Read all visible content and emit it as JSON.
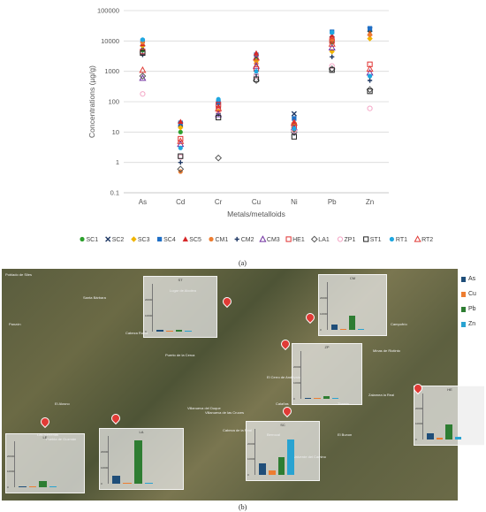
{
  "panel_labels": {
    "a": "(a)",
    "b": "(b)"
  },
  "chart_data": [
    {
      "type": "scatter",
      "xlabel": "Metals/metalloids",
      "ylabel": "Concentrations (µg/g)",
      "yscale": "log",
      "ylim": [
        0.1,
        100000
      ],
      "yticks": [
        "0.1",
        "1",
        "10",
        "100",
        "1000",
        "10000",
        "100000"
      ],
      "categories": [
        "As",
        "Cd",
        "Cr",
        "Cu",
        "Ni",
        "Pb",
        "Zn"
      ],
      "grid": true,
      "legend_position": "bottom",
      "series": [
        {
          "name": "SC1",
          "marker": "circle",
          "color": "#2ca02c",
          "values": [
            5000,
            10,
            60,
            2500,
            18,
            9000,
            22000
          ]
        },
        {
          "name": "SC2",
          "marker": "x",
          "color": "#1f3864",
          "values": [
            6000,
            18,
            75,
            3000,
            40,
            12000,
            24000
          ]
        },
        {
          "name": "SC3",
          "marker": "diamond",
          "color": "#f0b400",
          "values": [
            7000,
            14,
            55,
            2200,
            20,
            4500,
            12000
          ]
        },
        {
          "name": "SC4",
          "marker": "square",
          "color": "#1f6fc6",
          "values": [
            10000,
            20,
            95,
            3500,
            28,
            20000,
            26000
          ]
        },
        {
          "name": "SC5",
          "marker": "triangle",
          "color": "#d62728",
          "values": [
            8000,
            22,
            70,
            4000,
            22,
            15000,
            18000
          ]
        },
        {
          "name": "CM1",
          "marker": "circle",
          "color": "#ed7d31",
          "values": [
            9000,
            0.5,
            45,
            1800,
            12,
            11000,
            16000
          ]
        },
        {
          "name": "CM2",
          "marker": "plus",
          "color": "#1f3864",
          "values": [
            3500,
            1.0,
            40,
            800,
            9,
            3000,
            500
          ]
        },
        {
          "name": "CM3",
          "marker": "triangle-open",
          "color": "#7030a0",
          "values": [
            600,
            4,
            38,
            1500,
            14,
            6000,
            900
          ]
        },
        {
          "name": "HE1",
          "marker": "square-open",
          "color": "#e03030",
          "values": [
            4500,
            6,
            80,
            1200,
            16,
            10000,
            1700
          ]
        },
        {
          "name": "LA1",
          "marker": "diamond-open",
          "color": "#555555",
          "values": [
            700,
            0.6,
            1.4,
            500,
            10,
            1200,
            250
          ]
        },
        {
          "name": "ZP1",
          "marker": "circle-open",
          "color": "#f4a6c6",
          "values": [
            180,
            1.5,
            50,
            700,
            11,
            1500,
            60
          ]
        },
        {
          "name": "ST1",
          "marker": "square-open",
          "color": "#222222",
          "values": [
            4000,
            1.6,
            30,
            550,
            7,
            1100,
            220
          ]
        },
        {
          "name": "RT1",
          "marker": "circle",
          "color": "#1fa7e0",
          "values": [
            11000,
            3,
            120,
            1000,
            13,
            19000,
            700
          ]
        },
        {
          "name": "RT2",
          "marker": "triangle-open",
          "color": "#e03b36",
          "values": [
            1100,
            5,
            60,
            2800,
            20,
            8000,
            1200
          ]
        }
      ]
    },
    {
      "type": "bar",
      "inset_labels": [
        "SC",
        "ST",
        "CM",
        "ZP",
        "HE",
        "LA",
        "LE"
      ],
      "yticks_top": "20000",
      "yticks_mid": "10000",
      "yticks_bottom": "0",
      "legend": [
        {
          "name": "As",
          "color": "#1f4e79"
        },
        {
          "name": "Cu",
          "color": "#ed7d31"
        },
        {
          "name": "Pb",
          "color": "#2e7d32"
        },
        {
          "name": "Zn",
          "color": "#29a3d1"
        }
      ],
      "insets": [
        {
          "site": "ST",
          "values": [
            1100,
            500,
            1100,
            220
          ]
        },
        {
          "site": "CM",
          "values": [
            3500,
            800,
            9000,
            500
          ]
        },
        {
          "site": "ZP",
          "values": [
            180,
            700,
            1500,
            60
          ]
        },
        {
          "site": "HE",
          "values": [
            4500,
            1200,
            10000,
            1700
          ]
        },
        {
          "site": "LA",
          "values": [
            5000,
            500,
            28000,
            250
          ]
        },
        {
          "site": "LE",
          "values": [
            700,
            500,
            4000,
            300
          ]
        },
        {
          "site": "SC",
          "values": [
            8000,
            3000,
            12000,
            24000
          ]
        }
      ]
    }
  ],
  "map": {
    "places": [
      "Poblado de Siles",
      "Santa Bárbara",
      "Panzón",
      "Lugar de Alcolea",
      "Cabeza Rubia",
      "Puerto de la Cerca",
      "Villanueva del Duque",
      "Villanueva de las Cruces",
      "El Cerro de Andévalo",
      "Calañas",
      "Tharsis",
      "El Bunon",
      "Puebla de Guzmán",
      "Las Herrerias",
      "El Alosno",
      "Valverde del Camino",
      "Minas de Riotinto",
      "Campofrío",
      "Zalamea la Real",
      "Berrocal",
      "Cabeza de la Real"
    ]
  }
}
